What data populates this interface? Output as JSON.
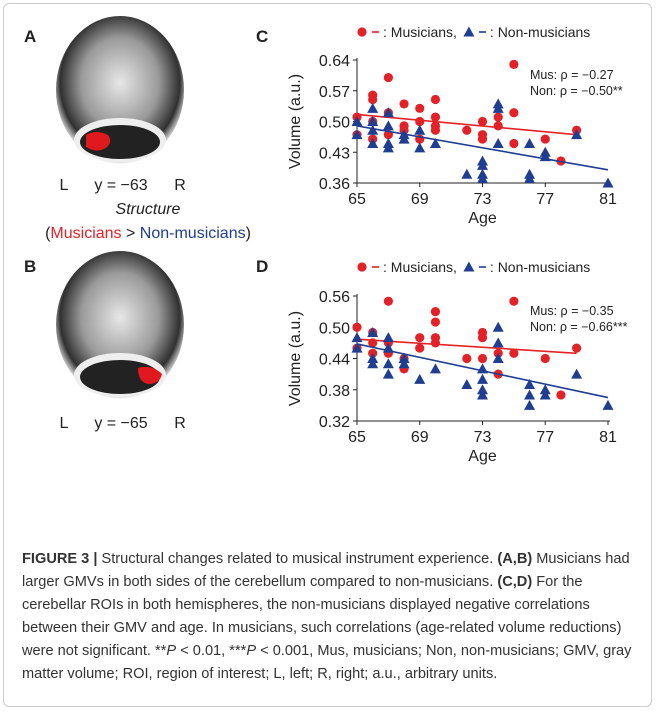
{
  "panel_labels": [
    "A",
    "B",
    "C",
    "D"
  ],
  "brain_a": {
    "left": "L",
    "slice": "y = −63",
    "right": "R"
  },
  "brain_b": {
    "left": "L",
    "slice": "y = −65",
    "right": "R"
  },
  "structure": {
    "title": "Structure",
    "open": "(",
    "musicians": "Musicians",
    "gt": " > ",
    "non": "Non-musicians",
    "close": ")"
  },
  "chart_data": [
    {
      "type": "scatter",
      "xlabel": "Age",
      "ylabel": "Volume (a.u.)",
      "xlim": [
        65,
        81
      ],
      "xticks": [
        65,
        69,
        73,
        77,
        81
      ],
      "ylim": [
        0.36,
        0.64
      ],
      "yticks": [
        0.36,
        0.43,
        {
          "value": 0.5,
          "label": "0.50"
        },
        0.57,
        0.64
      ],
      "annotations": [
        "Mus: ρ = −0.27",
        "Non: ρ = −0.50**"
      ],
      "series": [
        {
          "name": ": Musicians,",
          "color": "#e32228",
          "marker": "circle",
          "x": [
            65,
            65,
            66,
            66,
            66,
            66,
            67,
            67,
            67,
            68,
            68,
            68,
            69,
            69,
            69,
            70,
            70,
            70,
            70,
            72,
            73,
            73,
            73,
            74,
            74,
            75,
            75,
            75,
            77,
            78,
            79
          ],
          "values": [
            0.51,
            0.47,
            0.56,
            0.55,
            0.5,
            0.46,
            0.6,
            0.52,
            0.47,
            0.54,
            0.49,
            0.48,
            0.53,
            0.5,
            0.46,
            0.55,
            0.51,
            0.49,
            0.48,
            0.48,
            0.5,
            0.47,
            0.46,
            0.51,
            0.49,
            0.63,
            0.52,
            0.45,
            0.46,
            0.41,
            0.48
          ],
          "trend_x": [
            65,
            79
          ],
          "trend_y": [
            0.516,
            0.47
          ]
        },
        {
          "name": ": Non-musicians",
          "color": "#1f3e92",
          "marker": "triangle",
          "x": [
            65,
            65,
            66,
            66,
            66,
            66,
            67,
            67,
            67,
            67,
            68,
            68,
            69,
            69,
            70,
            72,
            73,
            73,
            73,
            73,
            74,
            74,
            74,
            76,
            76,
            76,
            77,
            77,
            79,
            81
          ],
          "values": [
            0.5,
            0.47,
            0.53,
            0.5,
            0.48,
            0.45,
            0.52,
            0.49,
            0.45,
            0.44,
            0.47,
            0.46,
            0.48,
            0.44,
            0.45,
            0.38,
            0.41,
            0.4,
            0.38,
            0.37,
            0.54,
            0.53,
            0.45,
            0.45,
            0.38,
            0.37,
            0.43,
            0.42,
            0.47,
            0.36
          ],
          "trend_x": [
            65,
            81
          ],
          "trend_y": [
            0.49,
            0.39
          ]
        }
      ]
    },
    {
      "type": "scatter",
      "xlabel": "Age",
      "ylabel": "Volume (a.u.)",
      "xlim": [
        65,
        81
      ],
      "xticks": [
        65,
        69,
        73,
        77,
        81
      ],
      "ylim": [
        0.32,
        0.56
      ],
      "yticks": [
        0.32,
        0.38,
        0.44,
        {
          "value": 0.5,
          "label": "0.50"
        },
        0.56
      ],
      "annotations": [
        "Mus: ρ = −0.35",
        "Non: ρ = −0.66***"
      ],
      "series": [
        {
          "name": ": Musicians,",
          "color": "#e32228",
          "marker": "circle",
          "x": [
            65,
            65,
            66,
            66,
            66,
            67,
            67,
            67,
            68,
            68,
            69,
            69,
            70,
            70,
            70,
            70,
            72,
            73,
            73,
            73,
            74,
            74,
            75,
            75,
            77,
            78,
            79
          ],
          "values": [
            0.5,
            0.46,
            0.49,
            0.47,
            0.45,
            0.55,
            0.47,
            0.45,
            0.44,
            0.42,
            0.48,
            0.46,
            0.53,
            0.51,
            0.48,
            0.47,
            0.44,
            0.49,
            0.48,
            0.44,
            0.45,
            0.41,
            0.55,
            0.45,
            0.44,
            0.37,
            0.46
          ],
          "trend_x": [
            65,
            79
          ],
          "trend_y": [
            0.477,
            0.45
          ]
        },
        {
          "name": ": Non-musicians",
          "color": "#1f3e92",
          "marker": "triangle",
          "x": [
            65,
            65,
            66,
            66,
            66,
            67,
            67,
            67,
            67,
            68,
            68,
            69,
            70,
            72,
            73,
            73,
            73,
            73,
            74,
            74,
            74,
            76,
            76,
            76,
            77,
            77,
            79,
            81
          ],
          "values": [
            0.48,
            0.46,
            0.49,
            0.44,
            0.43,
            0.48,
            0.46,
            0.43,
            0.41,
            0.44,
            0.43,
            0.4,
            0.42,
            0.39,
            0.42,
            0.4,
            0.38,
            0.37,
            0.5,
            0.47,
            0.44,
            0.39,
            0.37,
            0.35,
            0.38,
            0.37,
            0.41,
            0.35
          ],
          "trend_x": [
            65,
            81
          ],
          "trend_y": [
            0.468,
            0.365
          ]
        }
      ]
    }
  ],
  "caption": [
    "FIGURE 3 |",
    " Structural changes related to musical instrument experience. ",
    "(A,B)",
    " Musicians had larger GMVs in both sides of the cerebellum compared to non-musicians. ",
    "(C,D)",
    " For the cerebellar ROIs in both hemispheres, the non-musicians displayed negative correlations between their GMV and age. In musicians, such correlations (age-related volume reductions) were not significant. **",
    "P",
    " < 0.01, ***",
    "P",
    " < 0.001, Mus, musicians; Non, non-musicians; GMV, gray matter volume; ROI, region of interest; L, left; R, right; a.u., arbitrary units."
  ]
}
